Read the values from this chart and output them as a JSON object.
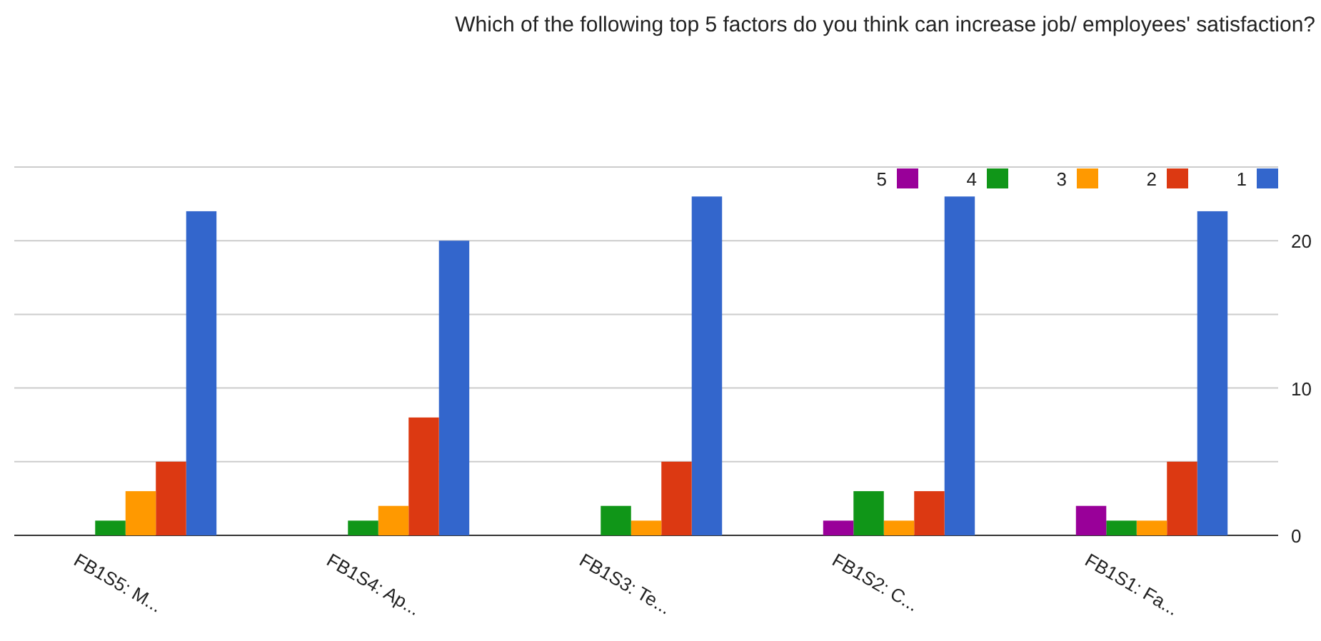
{
  "chart_data": {
    "type": "bar",
    "title": "Which of the following top 5 factors do you think can increase job/ employees' satisfaction?",
    "categories": [
      "FB1S5: M...",
      "FB1S4: Ap...",
      "FB1S3: Te...",
      "FB1S2: C...",
      "FB1S1: Fa..."
    ],
    "series": [
      {
        "name": "1",
        "color": "#3366cc",
        "values": [
          22,
          20,
          23,
          23,
          22
        ]
      },
      {
        "name": "2",
        "color": "#dc3912",
        "values": [
          5,
          8,
          5,
          3,
          5
        ]
      },
      {
        "name": "3",
        "color": "#ff9900",
        "values": [
          3,
          2,
          1,
          1,
          1
        ]
      },
      {
        "name": "4",
        "color": "#109618",
        "values": [
          1,
          1,
          2,
          3,
          1
        ]
      },
      {
        "name": "5",
        "color": "#990099",
        "values": [
          0,
          0,
          0,
          1,
          2
        ]
      }
    ],
    "ylim": [
      0,
      25
    ],
    "yticks": [
      0,
      {
        "value": 5,
        "label": null
      },
      10,
      {
        "value": 15,
        "label": null
      },
      20,
      {
        "value": 25,
        "label": null
      }
    ],
    "grid": true,
    "legend": "top right"
  }
}
